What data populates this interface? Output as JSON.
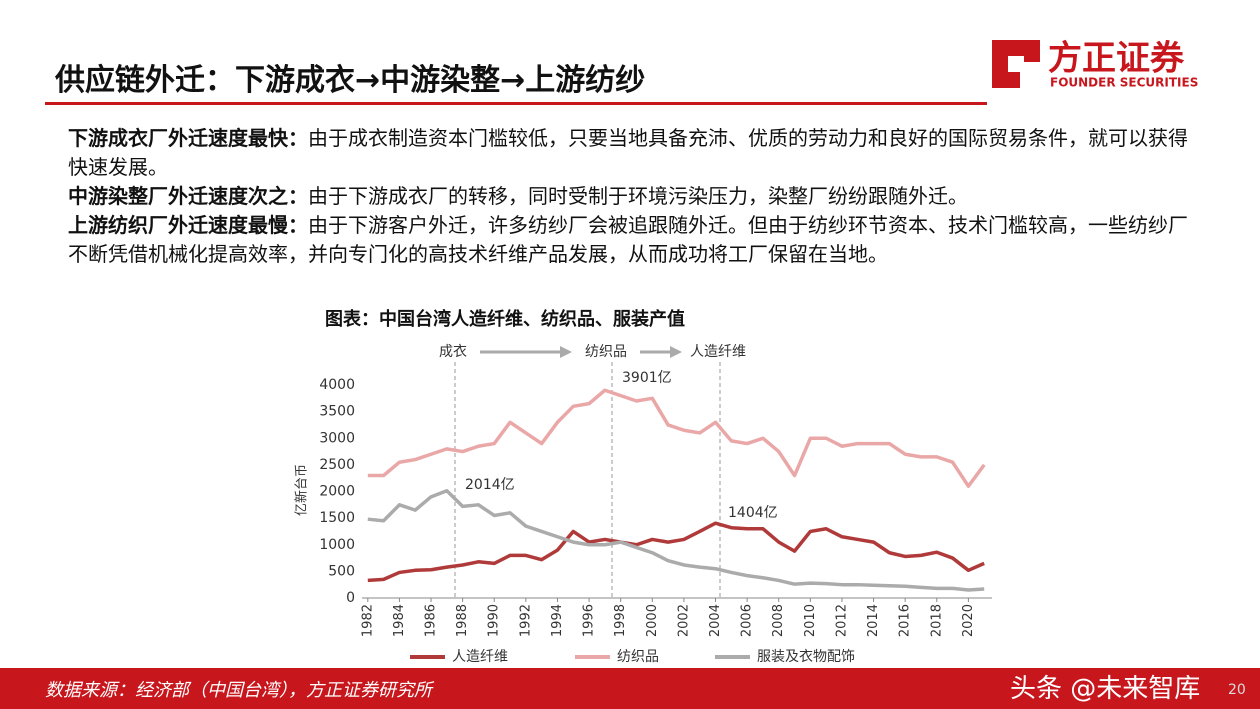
{
  "header": {
    "title": "供应链外迁：下游成衣→中游染整→上游纺纱"
  },
  "logo": {
    "name": "方正证券",
    "sub": "FOUNDER SECURITIES"
  },
  "paragraphs": [
    {
      "lead": "下游成衣厂外迁速度最快：",
      "text": "由于成衣制造资本门槛较低，只要当地具备充沛、优质的劳动力和良好的国际贸易条件，就可以获得快速发展。"
    },
    {
      "lead": "中游染整厂外迁速度次之：",
      "text": "由于下游成衣厂的转移，同时受制于环境污染压力，染整厂纷纷跟随外迁。"
    },
    {
      "lead": "上游纺织厂外迁速度最慢：",
      "text": "由于下游客户外迁，许多纺纱厂会被追跟随外迁。但由于纺纱环节资本、技术门槛较高，一些纺纱厂不断凭借机械化提高效率，并向专门化的高技术纤维产品发展，从而成功将工厂保留在当地。"
    }
  ],
  "chart_data": {
    "type": "line",
    "title": "图表：中国台湾人造纤维、纺织品、服装产值",
    "y_label": "亿新台币",
    "stages": [
      "成衣",
      "纺织品",
      "人造纤维"
    ],
    "annotations": [
      "2014亿",
      "3901亿",
      "1404亿"
    ],
    "x": [
      1982,
      1983,
      1984,
      1985,
      1986,
      1987,
      1988,
      1989,
      1990,
      1991,
      1992,
      1993,
      1994,
      1995,
      1996,
      1997,
      1998,
      1999,
      2000,
      2001,
      2002,
      2003,
      2004,
      2005,
      2006,
      2007,
      2008,
      2009,
      2010,
      2011,
      2012,
      2013,
      2014,
      2015,
      2016,
      2017,
      2018,
      2019,
      2020,
      2021
    ],
    "series": [
      {
        "name": "人造纤维",
        "color": "#b03a3a",
        "values": [
          330,
          350,
          480,
          520,
          530,
          580,
          620,
          680,
          650,
          800,
          800,
          720,
          900,
          1250,
          1050,
          1100,
          1050,
          1000,
          1100,
          1050,
          1100,
          1250,
          1404,
          1320,
          1300,
          1300,
          1050,
          880,
          1250,
          1300,
          1150,
          1100,
          1050,
          850,
          780,
          800,
          860,
          750,
          520,
          650
        ]
      },
      {
        "name": "纺织品",
        "color": "#eaa7a7",
        "values": [
          2300,
          2300,
          2550,
          2600,
          2700,
          2800,
          2750,
          2850,
          2900,
          3300,
          3100,
          2900,
          3300,
          3600,
          3650,
          3901,
          3800,
          3700,
          3750,
          3250,
          3150,
          3100,
          3300,
          2950,
          2900,
          3000,
          2750,
          2300,
          3000,
          3000,
          2850,
          2900,
          2900,
          2900,
          2700,
          2650,
          2650,
          2550,
          2100,
          2500
        ]
      },
      {
        "name": "服装及衣物配饰",
        "color": "#ababab",
        "values": [
          1480,
          1450,
          1750,
          1650,
          1900,
          2014,
          1720,
          1750,
          1550,
          1600,
          1350,
          1250,
          1150,
          1050,
          1000,
          1000,
          1050,
          950,
          850,
          700,
          620,
          580,
          550,
          480,
          420,
          380,
          330,
          260,
          280,
          270,
          250,
          250,
          240,
          230,
          220,
          200,
          180,
          180,
          150,
          170
        ]
      }
    ],
    "xlim": [
      1981,
      2022
    ],
    "xticks": [
      1982,
      1984,
      1986,
      1988,
      1990,
      1992,
      1994,
      1996,
      1998,
      2000,
      2002,
      2004,
      2006,
      2008,
      2010,
      2012,
      2014,
      2016,
      2018,
      2020
    ],
    "ylim": [
      0,
      4000
    ],
    "yticks": [
      0,
      500,
      1000,
      1500,
      2000,
      2500,
      3000,
      3500,
      4000
    ],
    "grid": false,
    "legend": "bottom"
  },
  "footer": {
    "source": "数据来源：经济部（中国台湾），方正证券研究所",
    "watermark": "头条 @未来智库",
    "page": 20
  }
}
